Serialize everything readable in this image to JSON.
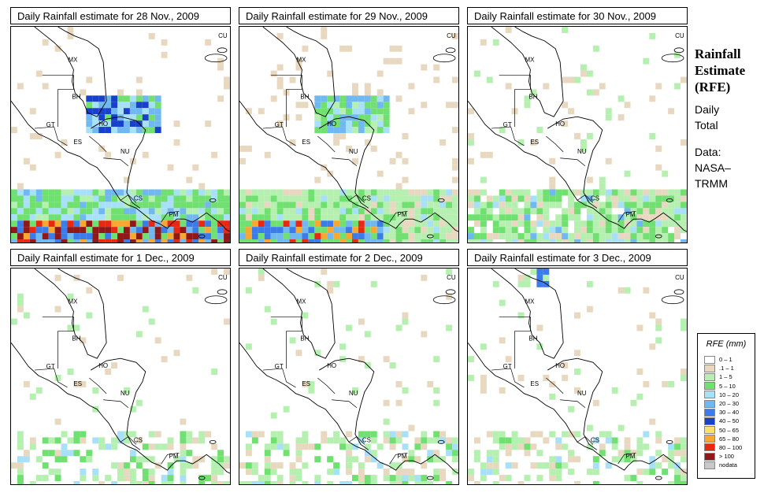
{
  "panels": [
    {
      "title": "Daily Rainfall estimate for  28 Nov., 2009",
      "intensity": "extreme"
    },
    {
      "title": "Daily Rainfall estimate for  29 Nov., 2009",
      "intensity": "heavy"
    },
    {
      "title": "Daily Rainfall estimate for  30 Nov., 2009",
      "intensity": "moderate"
    },
    {
      "title": "Daily Rainfall estimate for  1 Dec., 2009",
      "intensity": "light"
    },
    {
      "title": "Daily Rainfall estimate for  2 Dec., 2009",
      "intensity": "light"
    },
    {
      "title": "Daily Rainfall estimate for  3 Dec., 2009",
      "intensity": "light-spot"
    }
  ],
  "map_labels": [
    {
      "code": "CU"
    },
    {
      "code": "MX"
    },
    {
      "code": "BH"
    },
    {
      "code": "GT"
    },
    {
      "code": "HO"
    },
    {
      "code": "ES"
    },
    {
      "code": "NU"
    },
    {
      "code": "CS"
    },
    {
      "code": "PM"
    }
  ],
  "side": {
    "title_line1": "Rainfall",
    "title_line2": "Estimate",
    "title_line3": "(RFE)",
    "daily": "Daily",
    "total": "Total",
    "data_label": "Data:",
    "source1": "NASA–",
    "source2": "TRMM"
  },
  "legend": {
    "title": "RFE (mm)",
    "items": [
      {
        "label": "0 – 1",
        "color": "#ffffff"
      },
      {
        "label": ".1 – 1",
        "color": "#e8d8c0"
      },
      {
        "label": "1 – 5",
        "color": "#b6f0b0"
      },
      {
        "label": "5 – 10",
        "color": "#70e070"
      },
      {
        "label": "10 – 20",
        "color": "#a8e0f8"
      },
      {
        "label": "20 – 30",
        "color": "#70b8f0"
      },
      {
        "label": "30 – 40",
        "color": "#3c7ce8"
      },
      {
        "label": "40 – 50",
        "color": "#1840c8"
      },
      {
        "label": "50 – 65",
        "color": "#f8e070"
      },
      {
        "label": "65 – 80",
        "color": "#f8a830"
      },
      {
        "label": "80 – 100",
        "color": "#e82810"
      },
      {
        "label": "> 100",
        "color": "#901818"
      },
      {
        "label": "nodata",
        "color": "#c8c8c8"
      }
    ]
  }
}
